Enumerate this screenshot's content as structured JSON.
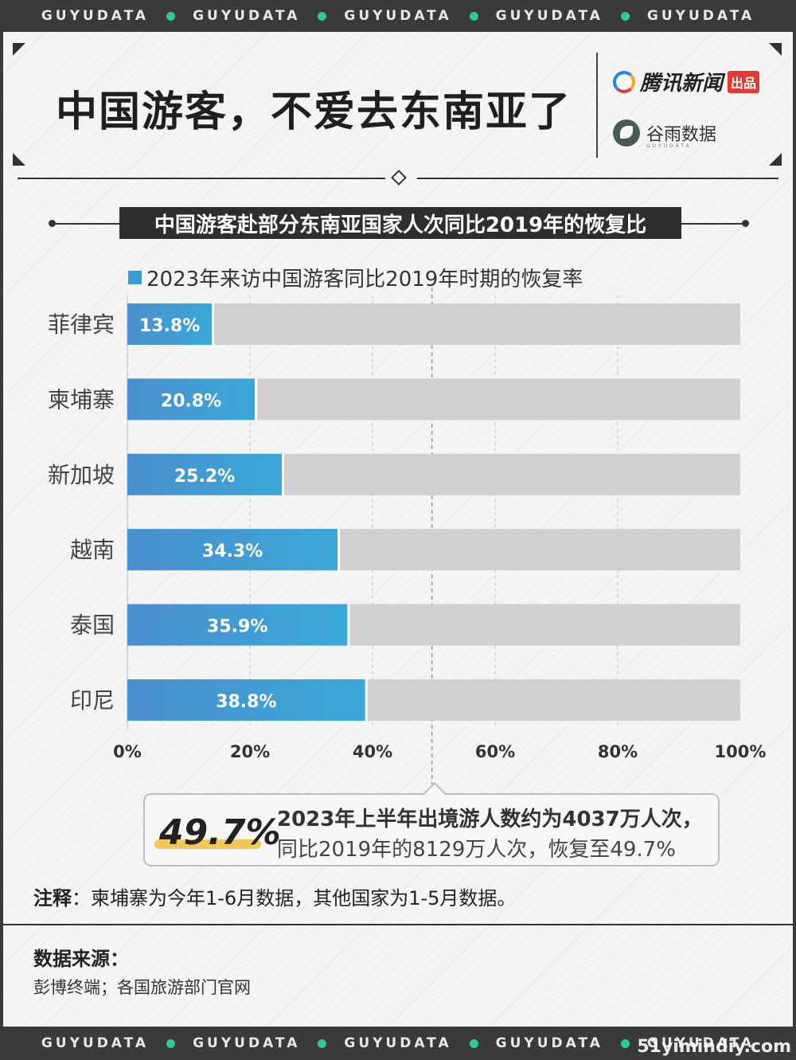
{
  "band": {
    "word": "GUYUDATA"
  },
  "header": {
    "title": "中国游客，不爱去东南亚了",
    "brand1": "腾讯新闻",
    "brand1_tag": "出品",
    "brand2": "谷雨数据",
    "brand2_sub": "GUYUDATA"
  },
  "subtitle": "中国游客赴部分东南亚国家人次同比2019年的恢复比",
  "legend": "2023年来访中国游客同比2019年时期的恢复率",
  "chart_data": {
    "type": "bar",
    "orientation": "horizontal",
    "stacked_background": true,
    "categories": [
      "菲律宾",
      "柬埔寨",
      "新加坡",
      "越南",
      "泰国",
      "印尼"
    ],
    "series": [
      {
        "name": "2023年来访中国游客同比2019年时期的恢复率",
        "values": [
          13.8,
          20.8,
          25.2,
          34.3,
          35.9,
          38.8
        ],
        "color": "#3a9ad4"
      }
    ],
    "value_labels": [
      "13.8%",
      "20.8%",
      "25.2%",
      "34.3%",
      "35.9%",
      "38.8%"
    ],
    "xlim": [
      0,
      100
    ],
    "x_ticks": [
      "0%",
      "20%",
      "40%",
      "60%",
      "80%",
      "100%"
    ],
    "reference_line": 49.7,
    "background_color": "#d0d0d0"
  },
  "callout": {
    "value": "49.7%",
    "line1": "2023年上半年出境游人数约为4037万人次，",
    "line2": "同比2019年的8129万人次，恢复至49.7%"
  },
  "note": {
    "label": "注释",
    "text": "：柬埔寨为今年1-6月数据，其他国家为1-5月数据。"
  },
  "source": {
    "label": "数据来源：",
    "text": "彭博终端；各国旅游部门官网"
  },
  "watermark": "51yimindiy.com"
}
